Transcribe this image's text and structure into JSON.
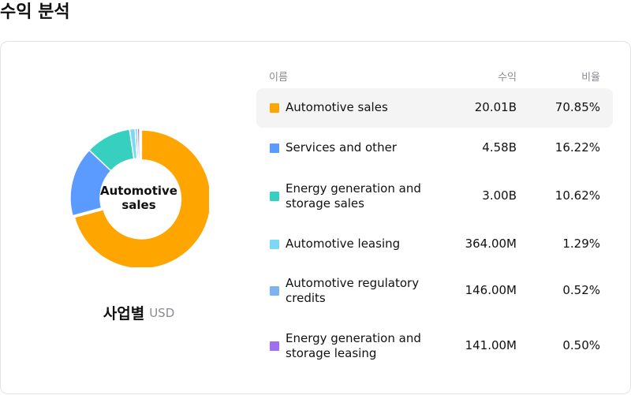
{
  "page": {
    "title": "수익 분석"
  },
  "table": {
    "headers": {
      "name": "이름",
      "revenue": "수익",
      "ratio": "비율"
    }
  },
  "chart_data": {
    "type": "pie",
    "title": "사업별",
    "unit": "USD",
    "center_label": "Automotive sales",
    "categories": [
      "Automotive sales",
      "Services and other",
      "Energy generation and storage sales",
      "Automotive leasing",
      "Automotive regulatory credits",
      "Energy generation and storage leasing"
    ],
    "revenue_labels": [
      "20.01B",
      "4.58B",
      "3.00B",
      "364.00M",
      "146.00M",
      "141.00M"
    ],
    "ratio_labels": [
      "70.85%",
      "16.22%",
      "10.62%",
      "1.29%",
      "0.52%",
      "0.50%"
    ],
    "values": [
      70.85,
      16.22,
      10.62,
      1.29,
      0.52,
      0.5
    ],
    "colors": [
      "#ffa500",
      "#5b9bff",
      "#36cfc0",
      "#7dd8f5",
      "#7cb3f0",
      "#9f6ff0"
    ],
    "highlighted_index": 0
  }
}
